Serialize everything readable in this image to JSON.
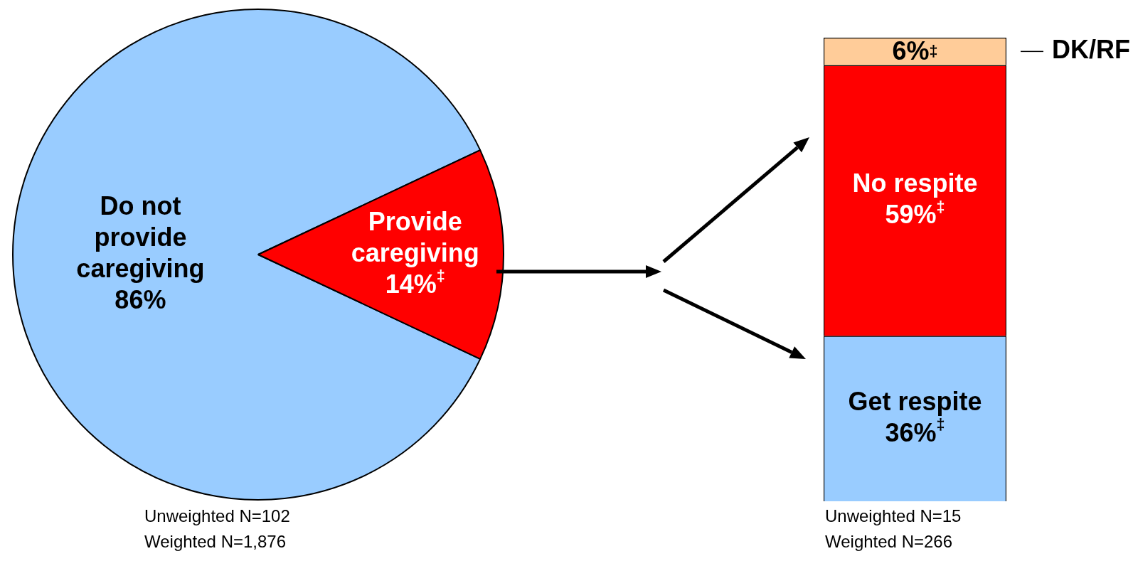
{
  "chart_data": [
    {
      "type": "pie",
      "categories": [
        "Do not provide caregiving",
        "Provide caregiving"
      ],
      "values": [
        86,
        14
      ],
      "colors": [
        "#99ccff",
        "#ff0000"
      ],
      "value_labels": [
        "86%",
        "14%$^{‡}$"
      ],
      "legend": false,
      "annotations": [
        "Unweighted N=102",
        "Weighted N=1,876"
      ]
    },
    {
      "type": "bar",
      "stacked": true,
      "categories": [
        null
      ],
      "ylim": [
        0,
        101
      ],
      "tick_labels": false,
      "legend": false,
      "series": [
        {
          "name": "Get respite",
          "color": "#99ccff",
          "values": [
            36
          ],
          "value_labels": [
            "36%$^{‡}$"
          ]
        },
        {
          "name": "No respite",
          "color": "#ff0000",
          "values": [
            59
          ],
          "value_labels": [
            "59%$^{‡}$"
          ]
        },
        {
          "name": "DK/RF",
          "color": "#ffcc99",
          "values": [
            6
          ],
          "value_labels": [
            "6%$^{‡}$"
          ]
        }
      ],
      "annotations": [
        "Unweighted N=15",
        "Weighted N=266"
      ]
    }
  ]
}
